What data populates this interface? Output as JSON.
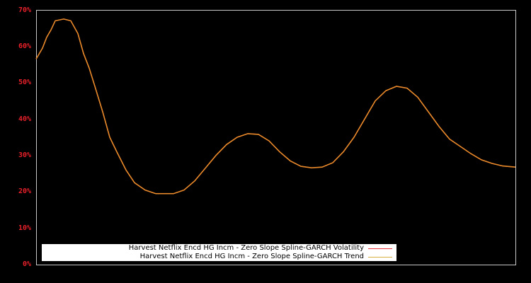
{
  "chart_data": {
    "type": "line",
    "title": "",
    "xlabel": "",
    "ylabel": "",
    "ylim": [
      0,
      70
    ],
    "y_ticks": [
      "0%",
      "10%",
      "20%",
      "30%",
      "40%",
      "50%",
      "60%",
      "70%"
    ],
    "y_tick_values": [
      0,
      10,
      20,
      30,
      40,
      50,
      60,
      70
    ],
    "grid": false,
    "legend_position": "lower-left inside",
    "x": [
      0,
      9,
      15,
      21,
      27,
      39,
      49,
      59,
      67,
      75,
      83,
      94,
      104,
      114,
      127,
      139,
      154,
      169,
      194,
      209,
      224,
      239,
      254,
      269,
      284,
      299,
      314,
      329,
      344,
      359,
      374,
      389,
      404,
      419,
      434,
      449,
      464,
      479,
      494,
      509,
      524,
      539,
      554,
      569,
      584,
      599,
      614,
      629,
      644,
      659,
      677
    ],
    "series": [
      {
        "name": "Harvest Netflix Encd HG Incm - Zero Slope Spline-GARCH Volatility",
        "color": "#e8343a",
        "values": [
          56.5,
          59.5,
          62.5,
          64.5,
          67,
          67.5,
          67,
          63.5,
          58,
          54,
          49,
          42,
          35,
          31,
          26,
          22.5,
          20.5,
          19.5,
          19.5,
          20.5,
          23,
          26.5,
          30,
          33,
          35,
          36,
          35.8,
          34,
          31,
          28.5,
          27,
          26.6,
          26.8,
          28,
          31,
          35,
          40,
          45,
          47.8,
          49,
          48.5,
          46,
          42,
          38,
          34.5,
          32.5,
          30.5,
          28.8,
          27.8,
          27.1,
          26.8
        ]
      },
      {
        "name": "Harvest Netflix Encd HG Incm - Zero Slope Spline-GARCH Trend",
        "color": "#e88a2a",
        "values": [
          56.5,
          59.5,
          62.5,
          64.5,
          67,
          67.5,
          67,
          63.5,
          58,
          54,
          49,
          42,
          35,
          31,
          26,
          22.5,
          20.5,
          19.5,
          19.5,
          20.5,
          23,
          26.5,
          30,
          33,
          35,
          36,
          35.8,
          34,
          31,
          28.5,
          27,
          26.6,
          26.8,
          28,
          31,
          35,
          40,
          45,
          47.8,
          49,
          48.5,
          46,
          42,
          38,
          34.5,
          32.5,
          30.5,
          28.8,
          27.8,
          27.1,
          26.8
        ]
      }
    ]
  },
  "legend": {
    "items": [
      {
        "label": "Harvest Netflix Encd HG Incm - Zero Slope Spline-GARCH Volatility",
        "color": "#e8343a"
      },
      {
        "label": "Harvest Netflix Encd HG Incm - Zero Slope Spline-GARCH Trend",
        "color": "#d8b040"
      }
    ]
  },
  "axis": {
    "y_labels": [
      "70%",
      "60%",
      "50%",
      "40%",
      "30%",
      "20%",
      "10%",
      "0%"
    ]
  }
}
